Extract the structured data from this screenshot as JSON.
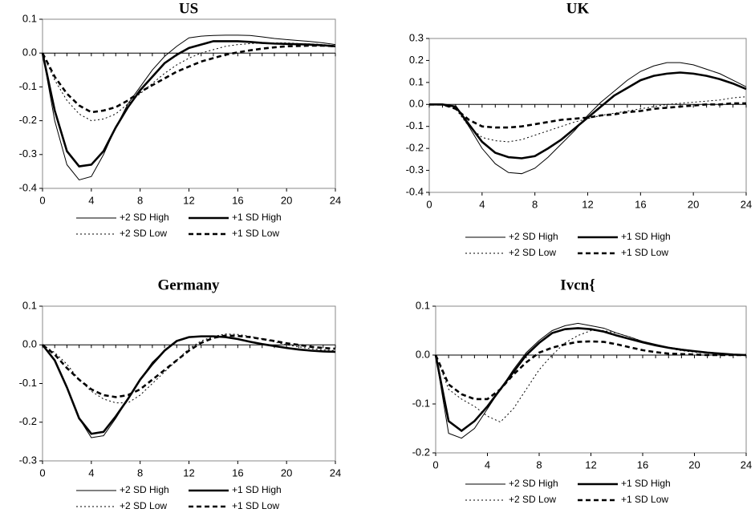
{
  "chart_data": [
    {
      "type": "line",
      "title": "US",
      "x": [
        0,
        1,
        2,
        3,
        4,
        5,
        6,
        7,
        8,
        9,
        10,
        11,
        12,
        13,
        14,
        15,
        16,
        17,
        18,
        19,
        20,
        21,
        22,
        23,
        24
      ],
      "xlim": [
        0,
        24
      ],
      "xticks": [
        0,
        4,
        8,
        12,
        16,
        20,
        24
      ],
      "ylim": [
        -0.4,
        0.1
      ],
      "yticks": [
        -0.4,
        -0.3,
        -0.2,
        -0.1,
        {
          "value": 0,
          "label": "0.0"
        },
        0.1
      ],
      "series": [
        {
          "name": "+2 SD High",
          "color": "#000000",
          "values": [
            0,
            -0.2,
            -0.33,
            -0.375,
            -0.365,
            -0.3,
            -0.22,
            -0.15,
            -0.1,
            -0.05,
            -0.01,
            0.02,
            0.045,
            0.05,
            0.052,
            0.053,
            0.053,
            0.052,
            0.048,
            0.043,
            0.04,
            0.037,
            0.034,
            0.03,
            0.025
          ]
        },
        {
          "name": "+1 SD High",
          "color": "#000000",
          "values": [
            0,
            -0.17,
            -0.29,
            -0.335,
            -0.33,
            -0.29,
            -0.22,
            -0.16,
            -0.11,
            -0.07,
            -0.03,
            -0.005,
            0.015,
            0.025,
            0.035,
            0.035,
            0.035,
            0.033,
            0.03,
            0.028,
            0.027,
            0.026,
            0.025,
            0.023,
            0.02
          ]
        },
        {
          "name": "+2 SD Low",
          "color": "#000000",
          "values": [
            0,
            -0.08,
            -0.14,
            -0.18,
            -0.2,
            -0.195,
            -0.18,
            -0.15,
            -0.12,
            -0.09,
            -0.06,
            -0.035,
            -0.015,
            0,
            0.01,
            0.02,
            0.025,
            0.028,
            0.03,
            0.03,
            0.03,
            0.028,
            0.027,
            0.025,
            0.022
          ]
        },
        {
          "name": "+1 SD Low",
          "color": "#000000",
          "values": [
            0,
            -0.07,
            -0.12,
            -0.155,
            -0.175,
            -0.17,
            -0.16,
            -0.14,
            -0.115,
            -0.095,
            -0.075,
            -0.055,
            -0.04,
            -0.025,
            -0.015,
            -0.005,
            0.002,
            0.008,
            0.013,
            0.017,
            0.02,
            0.021,
            0.022,
            0.022,
            0.02
          ]
        }
      ]
    },
    {
      "type": "line",
      "title": "UK",
      "x": [
        0,
        1,
        2,
        3,
        4,
        5,
        6,
        7,
        8,
        9,
        10,
        11,
        12,
        13,
        14,
        15,
        16,
        17,
        18,
        19,
        20,
        21,
        22,
        23,
        24
      ],
      "xlim": [
        0,
        24
      ],
      "xticks": [
        0,
        4,
        8,
        12,
        16,
        20,
        24
      ],
      "ylim": [
        -0.4,
        0.3
      ],
      "yticks": [
        -0.4,
        -0.3,
        -0.2,
        -0.1,
        {
          "value": 0,
          "label": "0.0"
        },
        0.1,
        0.2,
        0.3
      ],
      "series": [
        {
          "name": "+2 SD High",
          "color": "#000000",
          "values": [
            0,
            0,
            -0.01,
            -0.1,
            -0.2,
            -0.27,
            -0.31,
            -0.315,
            -0.29,
            -0.24,
            -0.18,
            -0.12,
            -0.05,
            0.01,
            0.06,
            0.11,
            0.15,
            0.175,
            0.19,
            0.19,
            0.18,
            0.16,
            0.14,
            0.11,
            0.08
          ]
        },
        {
          "name": "+1 SD High",
          "color": "#000000",
          "values": [
            0,
            0,
            -0.01,
            -0.09,
            -0.17,
            -0.22,
            -0.24,
            -0.245,
            -0.235,
            -0.2,
            -0.16,
            -0.11,
            -0.06,
            -0.01,
            0.04,
            0.075,
            0.11,
            0.13,
            0.14,
            0.145,
            0.14,
            0.13,
            0.115,
            0.095,
            0.07
          ]
        },
        {
          "name": "+2 SD Low",
          "color": "#000000",
          "values": [
            0,
            0,
            -0.02,
            -0.1,
            -0.15,
            -0.165,
            -0.17,
            -0.16,
            -0.14,
            -0.12,
            -0.1,
            -0.08,
            -0.065,
            -0.05,
            -0.04,
            -0.03,
            -0.02,
            -0.01,
            0,
            0.005,
            0.01,
            0.015,
            0.02,
            0.03,
            0.035
          ]
        },
        {
          "name": "+1 SD Low",
          "color": "#000000",
          "values": [
            0,
            0,
            -0.02,
            -0.07,
            -0.1,
            -0.105,
            -0.105,
            -0.1,
            -0.09,
            -0.08,
            -0.07,
            -0.065,
            -0.06,
            -0.05,
            -0.045,
            -0.035,
            -0.03,
            -0.02,
            -0.015,
            -0.01,
            -0.005,
            0,
            0,
            0.005,
            0.005
          ]
        }
      ]
    },
    {
      "type": "line",
      "title": "Germany",
      "x": [
        0,
        1,
        2,
        3,
        4,
        5,
        6,
        7,
        8,
        9,
        10,
        11,
        12,
        13,
        14,
        15,
        16,
        17,
        18,
        19,
        20,
        21,
        22,
        23,
        24
      ],
      "xlim": [
        0,
        24
      ],
      "xticks": [
        0,
        4,
        8,
        12,
        16,
        20,
        24
      ],
      "ylim": [
        -0.3,
        0.1
      ],
      "yticks": [
        -0.3,
        -0.2,
        -0.1,
        {
          "value": 0,
          "label": "0.0"
        },
        0.1
      ],
      "series": [
        {
          "name": "+2 SD High",
          "color": "#000000",
          "values": [
            0,
            -0.04,
            -0.11,
            -0.19,
            -0.24,
            -0.235,
            -0.19,
            -0.14,
            -0.09,
            -0.045,
            -0.015,
            0.01,
            0.02,
            0.022,
            0.022,
            0.02,
            0.015,
            0.008,
            0.002,
            -0.003,
            -0.008,
            -0.012,
            -0.015,
            -0.017,
            -0.018
          ]
        },
        {
          "name": "+1 SD High",
          "color": "#000000",
          "values": [
            0,
            -0.04,
            -0.11,
            -0.19,
            -0.23,
            -0.225,
            -0.185,
            -0.14,
            -0.09,
            -0.05,
            -0.015,
            0.01,
            0.02,
            0.022,
            0.022,
            0.02,
            0.015,
            0.008,
            0.002,
            -0.003,
            -0.008,
            -0.012,
            -0.015,
            -0.017,
            -0.018
          ]
        },
        {
          "name": "+2 SD Low",
          "color": "#000000",
          "values": [
            0,
            -0.02,
            -0.05,
            -0.09,
            -0.12,
            -0.14,
            -0.15,
            -0.15,
            -0.13,
            -0.1,
            -0.07,
            -0.04,
            -0.01,
            0.01,
            0.022,
            0.028,
            0.027,
            0.022,
            0.015,
            0.008,
            0,
            -0.005,
            -0.01,
            -0.013,
            -0.015
          ]
        },
        {
          "name": "+1 SD Low",
          "color": "#000000",
          "values": [
            0,
            -0.025,
            -0.06,
            -0.09,
            -0.115,
            -0.13,
            -0.135,
            -0.13,
            -0.115,
            -0.09,
            -0.065,
            -0.04,
            -0.015,
            0.005,
            0.018,
            0.024,
            0.023,
            0.02,
            0.015,
            0.01,
            0.004,
            0,
            -0.005,
            -0.008,
            -0.01
          ]
        }
      ]
    },
    {
      "type": "line",
      "title": "Ivcn{",
      "x": [
        0,
        1,
        2,
        3,
        4,
        5,
        6,
        7,
        8,
        9,
        10,
        11,
        12,
        13,
        14,
        15,
        16,
        17,
        18,
        19,
        20,
        21,
        22,
        23,
        24
      ],
      "xlim": [
        0,
        24
      ],
      "xticks": [
        0,
        4,
        8,
        12,
        16,
        20,
        24
      ],
      "ylim": [
        -0.2,
        0.1
      ],
      "yticks": [
        -0.2,
        -0.1,
        {
          "value": 0,
          "label": "0.0"
        },
        0.1
      ],
      "series": [
        {
          "name": "+2 SD High",
          "color": "#000000",
          "values": [
            0,
            -0.16,
            -0.17,
            -0.15,
            -0.11,
            -0.07,
            -0.03,
            0.005,
            0.03,
            0.05,
            0.06,
            0.065,
            0.06,
            0.055,
            0.045,
            0.037,
            0.028,
            0.022,
            0.016,
            0.012,
            0.008,
            0.005,
            0.003,
            0.001,
            0
          ]
        },
        {
          "name": "+1 SD High",
          "color": "#000000",
          "values": [
            0,
            -0.135,
            -0.155,
            -0.135,
            -0.105,
            -0.07,
            -0.035,
            0,
            0.025,
            0.045,
            0.053,
            0.055,
            0.053,
            0.048,
            0.04,
            0.033,
            0.026,
            0.02,
            0.015,
            0.011,
            0.008,
            0.005,
            0.003,
            0.001,
            0
          ]
        },
        {
          "name": "+2 SD Low",
          "color": "#000000",
          "values": [
            0,
            -0.07,
            -0.09,
            -0.105,
            -0.125,
            -0.137,
            -0.11,
            -0.07,
            -0.03,
            0,
            0.025,
            0.04,
            0.05,
            0.05,
            0.045,
            0.037,
            0.028,
            0.02,
            0.014,
            0.009,
            0.006,
            0.004,
            0.002,
            0.001,
            0
          ]
        },
        {
          "name": "+1 SD Low",
          "color": "#000000",
          "values": [
            0,
            -0.06,
            -0.08,
            -0.09,
            -0.09,
            -0.07,
            -0.04,
            -0.015,
            0.005,
            0.015,
            0.022,
            0.027,
            0.028,
            0.027,
            0.022,
            0.016,
            0.01,
            0.006,
            0.003,
            0.002,
            0.001,
            0,
            0,
            0,
            0
          ]
        }
      ]
    }
  ]
}
